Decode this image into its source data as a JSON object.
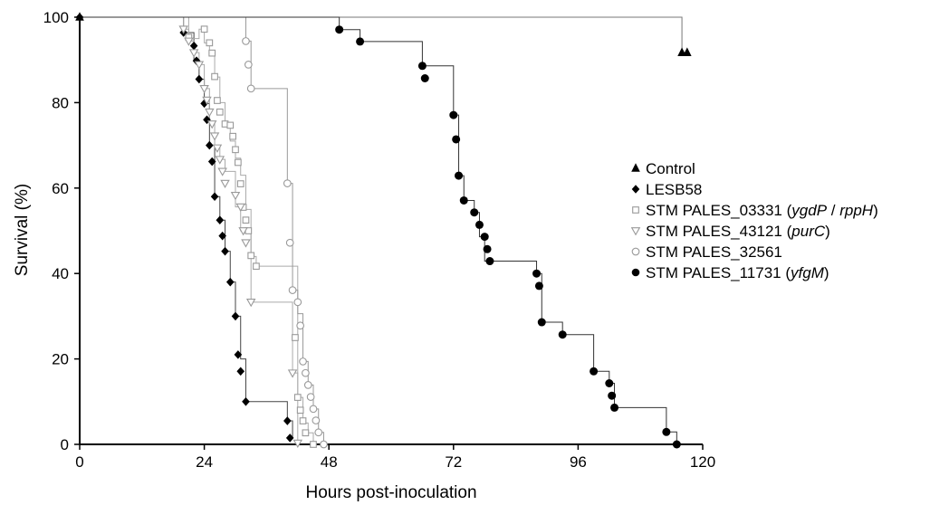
{
  "chart_data": {
    "type": "line",
    "subtype": "kaplan-meier-step",
    "title": "",
    "xlabel": "Hours post-inoculation",
    "ylabel": "Survival (%)",
    "xlim": [
      0,
      120
    ],
    "ylim": [
      0,
      100
    ],
    "xticks": [
      0,
      24,
      48,
      72,
      96,
      120
    ],
    "yticks": [
      0,
      20,
      40,
      60,
      80,
      100
    ],
    "grid": false,
    "legend_position": "right",
    "series": [
      {
        "name": "Control",
        "legend_parts": [
          {
            "text": "Control",
            "italic": false
          }
        ],
        "marker": "triangle-filled",
        "color": "#000000",
        "line_color": "#777777",
        "times": [
          0,
          116,
          117
        ],
        "survival": [
          100,
          91.7,
          91.7
        ],
        "markers": [
          [
            0,
            100
          ],
          [
            116,
            91.7
          ],
          [
            117,
            91.7
          ]
        ]
      },
      {
        "name": "LESB58",
        "legend_parts": [
          {
            "text": "LESB58",
            "italic": false
          }
        ],
        "marker": "diamond-filled",
        "color": "#000000",
        "line_color": "#444444",
        "times": [
          0,
          20,
          22,
          23,
          24,
          25,
          26,
          27,
          28,
          29,
          30,
          31,
          32,
          40,
          41
        ],
        "survival": [
          100,
          96.4,
          89.8,
          85.5,
          79.8,
          70,
          58,
          52.5,
          45.2,
          38,
          30,
          20,
          10,
          5.5,
          1.5
        ],
        "markers": [
          [
            0,
            100
          ],
          [
            20,
            96.4
          ],
          [
            22,
            93.3
          ],
          [
            22.5,
            89.8
          ],
          [
            23,
            85.5
          ],
          [
            24,
            79.8
          ],
          [
            24.5,
            76
          ],
          [
            25,
            70
          ],
          [
            25.5,
            66.2
          ],
          [
            26,
            58
          ],
          [
            27,
            52.5
          ],
          [
            27.5,
            48.8
          ],
          [
            28,
            45.2
          ],
          [
            29,
            38
          ],
          [
            30,
            30
          ],
          [
            30.5,
            21
          ],
          [
            31,
            17.1
          ],
          [
            32,
            10
          ],
          [
            40,
            5.5
          ],
          [
            40.5,
            1.5
          ]
        ]
      },
      {
        "name": "STM PALES_03331 (ygdP / rppH)",
        "legend_parts": [
          {
            "text": "STM PALES_03331 (",
            "italic": false
          },
          {
            "text": "ygdP",
            "italic": true
          },
          {
            "text": " / ",
            "italic": false
          },
          {
            "text": "rppH",
            "italic": true
          },
          {
            "text": ")",
            "italic": false
          }
        ],
        "marker": "square-open",
        "color": "#999999",
        "line_color": "#aaaaaa",
        "times": [
          0,
          21,
          23,
          24,
          25,
          26,
          27,
          28,
          29,
          30,
          31,
          32,
          33,
          34,
          42,
          43,
          44,
          45
        ],
        "survival": [
          100,
          95,
          97.2,
          94,
          91.5,
          86,
          80,
          75,
          71,
          67,
          63,
          55,
          44,
          41.7,
          11,
          5,
          2.7,
          0
        ],
        "markers": [
          [
            21,
            95.3
          ],
          [
            24,
            97.2
          ],
          [
            25,
            94
          ],
          [
            25.5,
            91.6
          ],
          [
            26,
            86.1
          ],
          [
            26.5,
            80.5
          ],
          [
            27,
            77.8
          ],
          [
            28,
            75
          ],
          [
            29,
            74.7
          ],
          [
            29.5,
            72.1
          ],
          [
            30,
            69
          ],
          [
            30.5,
            66
          ],
          [
            31,
            61
          ],
          [
            31.5,
            55.5
          ],
          [
            32,
            52.5
          ],
          [
            32.5,
            50
          ],
          [
            33,
            44.2
          ],
          [
            34,
            41.7
          ],
          [
            41.5,
            25
          ],
          [
            42,
            11
          ],
          [
            42.5,
            8
          ],
          [
            43,
            5.5
          ],
          [
            43.5,
            2.7
          ],
          [
            45,
            0
          ]
        ]
      },
      {
        "name": "STM PALES_43121 (purC)",
        "legend_parts": [
          {
            "text": "STM PALES_43121 (",
            "italic": false
          },
          {
            "text": "purC",
            "italic": true
          },
          {
            "text": ")",
            "italic": false
          }
        ],
        "marker": "triangle-down-open",
        "color": "#999999",
        "line_color": "#aaaaaa",
        "times": [
          0,
          20,
          21,
          22,
          23,
          24,
          25,
          26,
          27,
          28,
          30,
          31,
          33,
          41,
          42
        ],
        "survival": [
          100,
          97.2,
          94.4,
          91.7,
          88.9,
          83.3,
          75,
          69.4,
          66.7,
          63.9,
          55.6,
          50,
          33.3,
          16.7,
          0
        ],
        "markers": [
          [
            20,
            97.2
          ],
          [
            21,
            94.4
          ],
          [
            22,
            91.7
          ],
          [
            23,
            88.9
          ],
          [
            24,
            83.3
          ],
          [
            24.5,
            80.6
          ],
          [
            25,
            77.8
          ],
          [
            25.5,
            75
          ],
          [
            26,
            72.2
          ],
          [
            26.5,
            69.4
          ],
          [
            27,
            66.7
          ],
          [
            27.5,
            63.9
          ],
          [
            28,
            61.1
          ],
          [
            30,
            58.3
          ],
          [
            31,
            55.6
          ],
          [
            31.5,
            50
          ],
          [
            32,
            47.2
          ],
          [
            33,
            33.3
          ],
          [
            41,
            16.7
          ],
          [
            42,
            0.3
          ]
        ]
      },
      {
        "name": "STM PALES_32561",
        "legend_parts": [
          {
            "text": "STM PALES_32561",
            "italic": false
          }
        ],
        "marker": "circle-open",
        "color": "#999999",
        "line_color": "#999999",
        "times": [
          0,
          32,
          33,
          40,
          41,
          42,
          43,
          44,
          45,
          46,
          47
        ],
        "survival": [
          100,
          94.4,
          83.3,
          61.1,
          36.1,
          30.6,
          19.4,
          13.9,
          8.3,
          2.8,
          0
        ],
        "markers": [
          [
            32,
            94.4
          ],
          [
            32.5,
            88.9
          ],
          [
            33,
            83.3
          ],
          [
            40,
            61.1
          ],
          [
            40.5,
            47.2
          ],
          [
            41,
            36.1
          ],
          [
            42,
            33.3
          ],
          [
            42.5,
            27.8
          ],
          [
            43,
            19.4
          ],
          [
            43.5,
            16.7
          ],
          [
            44,
            13.9
          ],
          [
            44.5,
            11.1
          ],
          [
            45,
            8.3
          ],
          [
            45.5,
            5.6
          ],
          [
            46,
            2.8
          ],
          [
            47,
            0
          ]
        ]
      },
      {
        "name": "STM PALES_11731 (yfgM)",
        "legend_parts": [
          {
            "text": "STM PALES_11731 (",
            "italic": false
          },
          {
            "text": "yfgM",
            "italic": true
          },
          {
            "text": ")",
            "italic": false
          }
        ],
        "marker": "circle-filled",
        "color": "#000000",
        "line_color": "#333333",
        "times": [
          0,
          50,
          54,
          66,
          72,
          73,
          74,
          76,
          77,
          78,
          88,
          89,
          93,
          99,
          102,
          103,
          113,
          115
        ],
        "survival": [
          100,
          97.1,
          94.3,
          88.6,
          77.1,
          62.9,
          57.1,
          54.3,
          48.6,
          42.9,
          40,
          28.6,
          25.7,
          17.1,
          14.3,
          8.6,
          2.9,
          0
        ],
        "markers": [
          [
            50,
            97.1
          ],
          [
            54,
            94.3
          ],
          [
            66,
            88.6
          ],
          [
            66.5,
            85.7
          ],
          [
            72,
            77.1
          ],
          [
            72.5,
            71.4
          ],
          [
            73,
            62.9
          ],
          [
            74,
            57.1
          ],
          [
            76,
            54.3
          ],
          [
            77,
            51.4
          ],
          [
            78,
            48.6
          ],
          [
            78.5,
            45.7
          ],
          [
            79,
            42.9
          ],
          [
            88,
            40
          ],
          [
            88.5,
            37.1
          ],
          [
            89,
            28.6
          ],
          [
            93,
            25.7
          ],
          [
            99,
            17.1
          ],
          [
            102,
            14.3
          ],
          [
            102.5,
            11.4
          ],
          [
            103,
            8.6
          ],
          [
            113,
            2.9
          ],
          [
            115,
            0
          ]
        ]
      }
    ]
  }
}
